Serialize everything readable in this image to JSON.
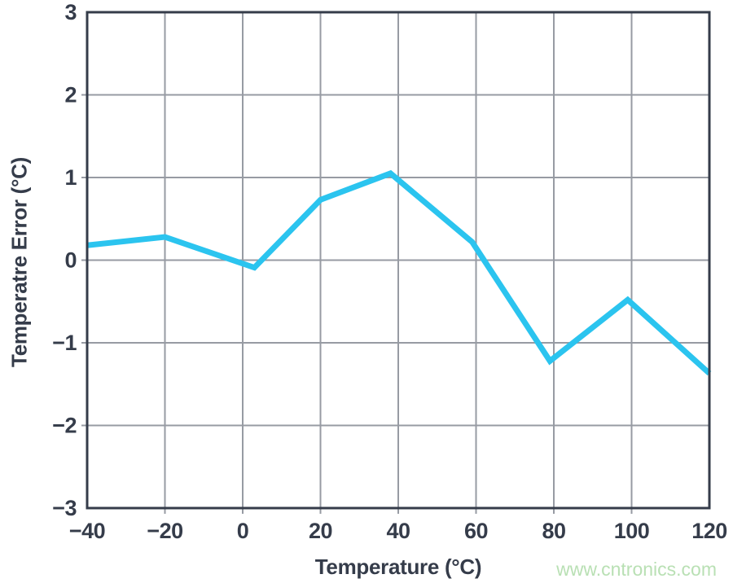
{
  "watermark": {
    "text": "www.cntronics.com",
    "color": "#b9e0b4"
  },
  "chart_data": {
    "type": "line",
    "title": "",
    "xlabel": "Temperature (°C)",
    "ylabel": "Temperatre Error (°C)",
    "xlim": [
      -40,
      120
    ],
    "ylim": [
      -3,
      3
    ],
    "x_ticks": [
      -40,
      -20,
      0,
      20,
      40,
      60,
      80,
      100,
      120
    ],
    "y_ticks": [
      -3,
      -2,
      -1,
      0,
      1,
      2,
      3
    ],
    "grid": true,
    "legend": false,
    "series": [
      {
        "name": "temperature-error",
        "color": "#2bc4ef",
        "line_width": 7,
        "x": [
          -40,
          -20,
          3,
          20,
          38,
          59,
          79,
          99,
          120
        ],
        "y": [
          0.18,
          0.28,
          -0.09,
          0.73,
          1.05,
          0.22,
          -1.22,
          -0.48,
          -1.37
        ]
      }
    ],
    "colors": {
      "axis": "#353c4a",
      "grid": "#979ba3",
      "tick_label": "#353c4a",
      "background": "#ffffff"
    }
  }
}
